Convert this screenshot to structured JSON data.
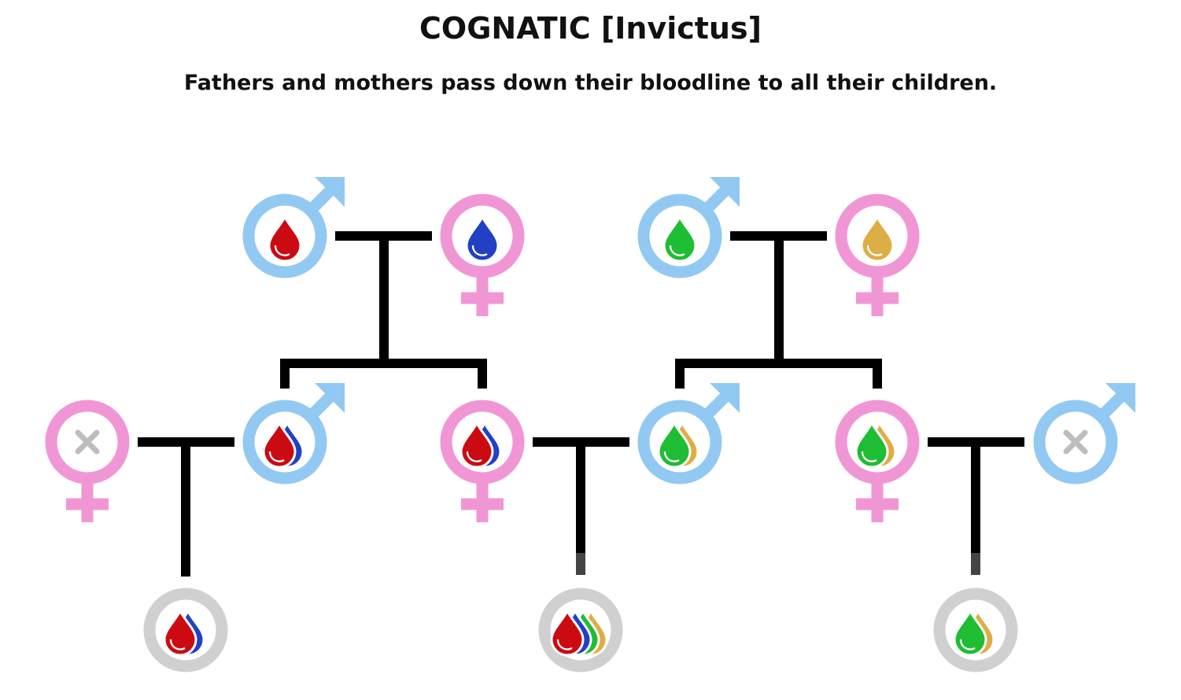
{
  "title": "COGNATIC [Invictus]",
  "subtitle": "Fathers and mothers pass down their bloodline to all their children.",
  "colors": {
    "male": "#92c9f2",
    "female": "#f196d5",
    "child": "#d0d0d0",
    "cross": "#bdbdbd",
    "line": "#000000",
    "blood_red": "#cc0a12",
    "blood_blue": "#2140c4",
    "blood_green": "#1fbd33",
    "blood_gold": "#ddae45"
  },
  "generations": [
    {
      "name": "grandparents",
      "people": [
        {
          "id": "gp1-father",
          "sex": "male",
          "blood": [
            "red"
          ]
        },
        {
          "id": "gp1-mother",
          "sex": "female",
          "blood": [
            "blue"
          ]
        },
        {
          "id": "gp2-father",
          "sex": "male",
          "blood": [
            "green"
          ]
        },
        {
          "id": "gp2-mother",
          "sex": "female",
          "blood": [
            "gold"
          ]
        }
      ]
    },
    {
      "name": "parents",
      "people": [
        {
          "id": "p-outsider-mother",
          "sex": "female",
          "blood": []
        },
        {
          "id": "p-son-1",
          "sex": "male",
          "blood": [
            "red",
            "blue"
          ]
        },
        {
          "id": "p-daughter-1",
          "sex": "female",
          "blood": [
            "red",
            "blue"
          ]
        },
        {
          "id": "p-son-2",
          "sex": "male",
          "blood": [
            "green",
            "gold"
          ]
        },
        {
          "id": "p-daughter-2",
          "sex": "female",
          "blood": [
            "green",
            "gold"
          ]
        },
        {
          "id": "p-outsider-father",
          "sex": "male",
          "blood": []
        }
      ]
    },
    {
      "name": "children",
      "people": [
        {
          "id": "c-1",
          "sex": "unknown",
          "blood": [
            "red",
            "blue"
          ]
        },
        {
          "id": "c-2",
          "sex": "unknown",
          "blood": [
            "red",
            "blue",
            "green",
            "gold"
          ]
        },
        {
          "id": "c-3",
          "sex": "unknown",
          "blood": [
            "green",
            "gold"
          ]
        }
      ]
    }
  ]
}
